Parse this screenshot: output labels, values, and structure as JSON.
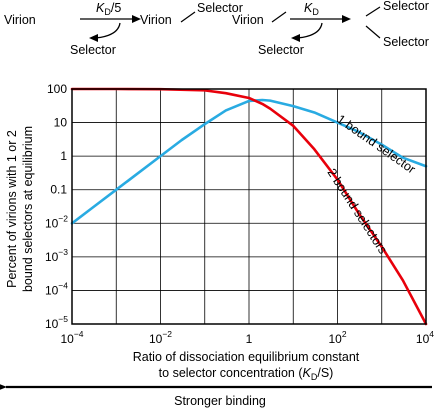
{
  "scheme": {
    "left": {
      "rate_main": "K",
      "rate_sub": "D",
      "rate_suffix": "/5",
      "from": "Virion",
      "to": "Virion",
      "to_attached": "Selector",
      "released": "Selector"
    },
    "right": {
      "rate_main": "K",
      "rate_sub": "D",
      "rate_suffix": "",
      "from": "Virion",
      "to_attached_1": "Selector",
      "to_attached_2": "Selector",
      "released": "Selector"
    }
  },
  "chart_data": {
    "type": "line",
    "ylabel_line1": "Percent of virions with 1 or 2",
    "ylabel_line2": "bound selectors at equilibrium",
    "xlabel_line1": "Ratio of dissociation equilibrium constant",
    "xlabel_line2_pre": "to selector concentration (",
    "xlabel_line2_k": "K",
    "xlabel_line2_sub": "D",
    "xlabel_line2_post": "/S)",
    "arrow_label": "Stronger binding",
    "x_scale": "log",
    "y_scale": "log",
    "xlim": [
      0.0001,
      10000
    ],
    "ylim": [
      1e-05,
      100
    ],
    "grid": true,
    "x_ticks": [
      {
        "base": "10",
        "exp": "−4"
      },
      {
        "base": "10",
        "exp": "−2"
      },
      {
        "base": "1",
        "exp": ""
      },
      {
        "base": "10",
        "exp": "2"
      },
      {
        "base": "10",
        "exp": "4"
      }
    ],
    "y_ticks": [
      {
        "base": "10",
        "exp": "−5"
      },
      {
        "base": "10",
        "exp": "−4"
      },
      {
        "base": "10",
        "exp": "−3"
      },
      {
        "base": "10",
        "exp": "−2"
      },
      {
        "base": "0.1",
        "exp": ""
      },
      {
        "base": "1",
        "exp": ""
      },
      {
        "base": "10",
        "exp": ""
      },
      {
        "base": "100",
        "exp": ""
      }
    ],
    "series": [
      {
        "name": "1 bound selector",
        "color": "#29abe2",
        "x": [
          0.0001,
          0.0003,
          0.001,
          0.003,
          0.01,
          0.03,
          0.1,
          0.3,
          1,
          2,
          3,
          10,
          30,
          100,
          300,
          1000,
          3000,
          10000
        ],
        "y": [
          0.01,
          0.03,
          0.1,
          0.3,
          1,
          3,
          9,
          23,
          44,
          47,
          45,
          31,
          20,
          10,
          5.3,
          2.2,
          0.9,
          0.5
        ]
      },
      {
        "name": "2 bound selectors",
        "color": "#e8000b",
        "x": [
          0.0001,
          0.001,
          0.01,
          0.1,
          0.3,
          1,
          2,
          3,
          10,
          30,
          100,
          300,
          1000,
          3000,
          10000
        ],
        "y": [
          99.99,
          99.9,
          99,
          91,
          75,
          54,
          36,
          26,
          8,
          1.6,
          0.2,
          0.02,
          0.002,
          0.0002,
          1e-05
        ]
      }
    ]
  }
}
